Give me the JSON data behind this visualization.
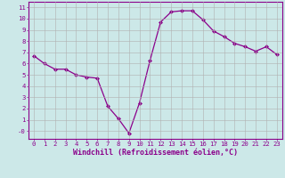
{
  "x": [
    0,
    1,
    2,
    3,
    4,
    5,
    6,
    7,
    8,
    9,
    10,
    11,
    12,
    13,
    14,
    15,
    16,
    17,
    18,
    19,
    20,
    21,
    22,
    23
  ],
  "y": [
    6.7,
    6.0,
    5.5,
    5.5,
    5.0,
    4.8,
    4.7,
    2.2,
    1.1,
    -0.2,
    2.5,
    6.3,
    9.7,
    10.6,
    10.7,
    10.7,
    9.9,
    8.9,
    8.4,
    7.8,
    7.5,
    7.1,
    7.5,
    6.8
  ],
  "xlabel": "Windchill (Refroidissement éolien,°C)",
  "xlim": [
    -0.5,
    23.5
  ],
  "ylim": [
    -0.7,
    11.5
  ],
  "xticks": [
    0,
    1,
    2,
    3,
    4,
    5,
    6,
    7,
    8,
    9,
    10,
    11,
    12,
    13,
    14,
    15,
    16,
    17,
    18,
    19,
    20,
    21,
    22,
    23
  ],
  "yticks": [
    0,
    1,
    2,
    3,
    4,
    5,
    6,
    7,
    8,
    9,
    10,
    11
  ],
  "ytick_labels": [
    "-0",
    "1",
    "2",
    "3",
    "4",
    "5",
    "6",
    "7",
    "8",
    "9",
    "10",
    "11"
  ],
  "line_color": "#8b008b",
  "marker_color": "#8b008b",
  "bg_color": "#cce8e8",
  "grid_color": "#b0b0b0",
  "text_color": "#8b008b",
  "tick_fontsize": 5.2,
  "xlabel_fontsize": 6.0
}
